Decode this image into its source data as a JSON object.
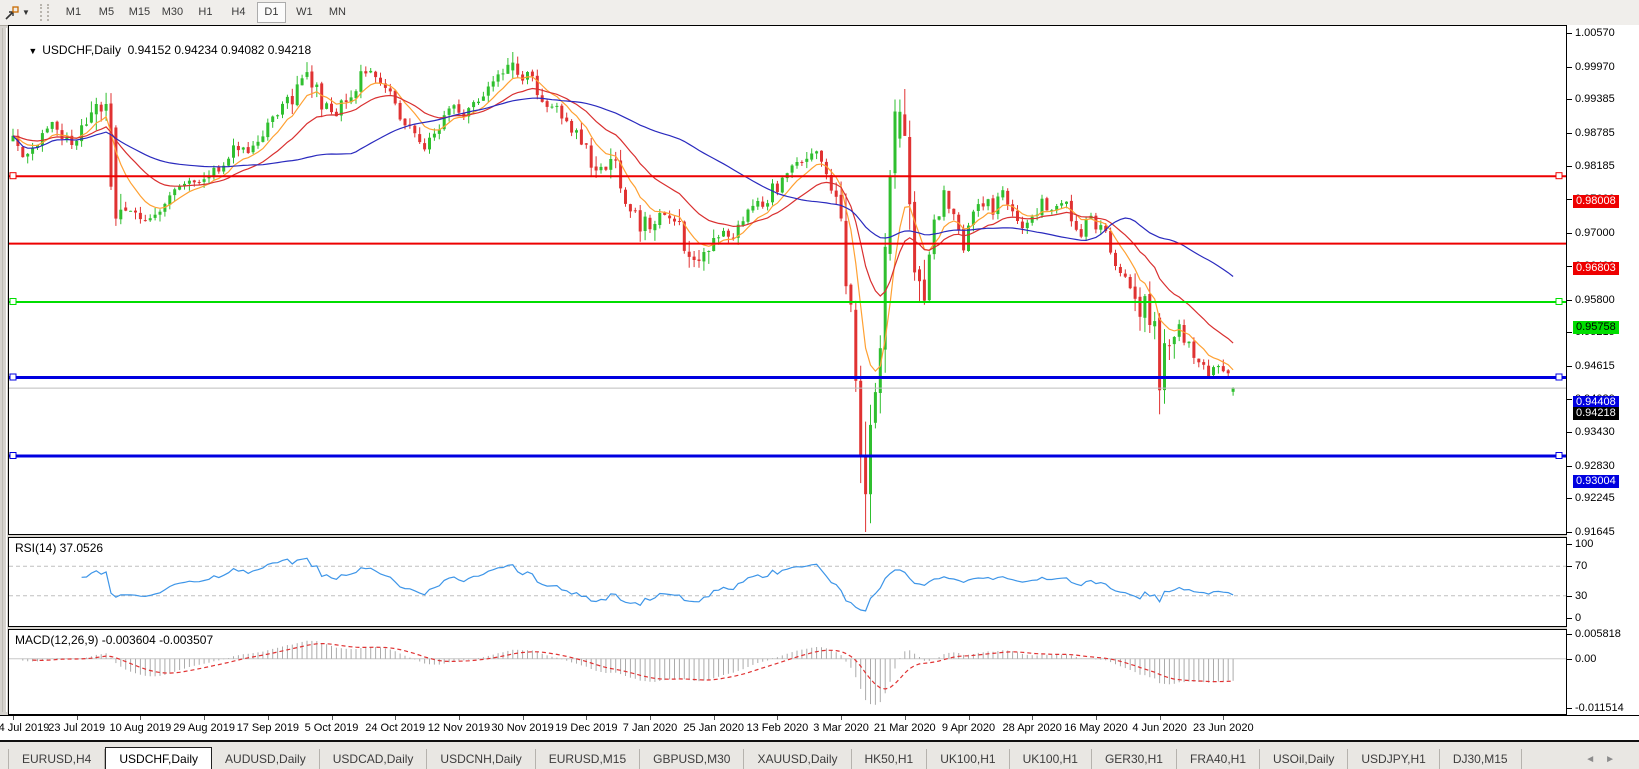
{
  "toolbar": {
    "icon": "chart-cursor-icon",
    "caret": "▼",
    "timeframes": [
      "M1",
      "M5",
      "M15",
      "M30",
      "H1",
      "H4",
      "D1",
      "W1",
      "MN"
    ],
    "active_timeframe": "D1"
  },
  "main_chart": {
    "collapse_arrow": "▼",
    "title": "USDCHF,Daily",
    "ohlc_text": "0.94152 0.94234 0.94082 0.94218"
  },
  "rsi_panel": {
    "label": "RSI(14) 37.0526"
  },
  "macd_panel": {
    "label": "MACD(12,26,9) -0.003604 -0.003507"
  },
  "tabs": {
    "items": [
      "EURUSD,H4",
      "USDCHF,Daily",
      "AUDUSD,Daily",
      "USDCAD,Daily",
      "USDCNH,Daily",
      "EURUSD,M15",
      "GBPUSD,M30",
      "XAUUSD,Daily",
      "HK50,H1",
      "UK100,H1",
      "UK100,H1",
      "GER30,H1",
      "FRA40,H1",
      "USOil,Daily",
      "USDJPY,H1",
      "DJ30,M15"
    ],
    "active_index": 1,
    "scroll_left": "◄",
    "scroll_right": "►"
  },
  "chart_data": {
    "type": "candlestick",
    "symbol": "USDCHF",
    "timeframe": "Daily",
    "last_candle": {
      "open": 0.94152,
      "high": 0.94234,
      "low": 0.94082,
      "close": 0.94218
    },
    "ylim": [
      0.91609,
      1.00695
    ],
    "price_ticks": [
      1.0057,
      0.9997,
      0.99385,
      0.98785,
      0.98185,
      0.976,
      0.97,
      0.964,
      0.958,
      0.95215,
      0.94615,
      0.9403,
      0.9343,
      0.9283,
      0.92245,
      0.91645
    ],
    "hlines": [
      {
        "price": 0.98008,
        "color": "#EE0000",
        "width": 2,
        "badge_bg": "#EE0000",
        "badge_fg": "#FFFFFF",
        "markers": true
      },
      {
        "price": 0.96803,
        "color": "#EE0000",
        "width": 2,
        "badge_bg": "#EE0000",
        "badge_fg": "#FFFFFF",
        "markers": false
      },
      {
        "price": 0.95758,
        "color": "#00DE00",
        "width": 2,
        "badge_bg": "#00DE00",
        "badge_fg": "#000000",
        "markers": true
      },
      {
        "price": 0.94408,
        "color": "#0000E0",
        "width": 3,
        "badge_bg": "#0000E0",
        "badge_fg": "#FFFFFF",
        "markers": true
      },
      {
        "price": 0.93004,
        "color": "#0000E0",
        "width": 3,
        "badge_bg": "#0000E0",
        "badge_fg": "#FFFFFF",
        "markers": true
      }
    ],
    "current_price": {
      "value": 0.94218,
      "line_color": "#BEBEBE",
      "badge_bg": "#000000",
      "badge_fg": "#FFFFFF"
    },
    "x_dates": [
      {
        "label": "4 Jul 2019",
        "day": 0
      },
      {
        "label": "23 Jul 2019",
        "day": 13
      },
      {
        "label": "10 Aug 2019",
        "day": 26
      },
      {
        "label": "29 Aug 2019",
        "day": 39
      },
      {
        "label": "17 Sep 2019",
        "day": 52
      },
      {
        "label": "5 Oct 2019",
        "day": 65
      },
      {
        "label": "24 Oct 2019",
        "day": 78
      },
      {
        "label": "12 Nov 2019",
        "day": 91
      },
      {
        "label": "30 Nov 2019",
        "day": 104
      },
      {
        "label": "19 Dec 2019",
        "day": 117
      },
      {
        "label": "7 Jan 2020",
        "day": 130
      },
      {
        "label": "25 Jan 2020",
        "day": 143
      },
      {
        "label": "13 Feb 2020",
        "day": 156
      },
      {
        "label": "3 Mar 2020",
        "day": 169
      },
      {
        "label": "21 Mar 2020",
        "day": 182
      },
      {
        "label": "9 Apr 2020",
        "day": 195
      },
      {
        "label": "28 Apr 2020",
        "day": 208
      },
      {
        "label": "16 May 2020",
        "day": 221
      },
      {
        "label": "4 Jun 2020",
        "day": 234
      },
      {
        "label": "23 Jun 2020",
        "day": 247
      }
    ],
    "candles": {
      "count": 250,
      "up_color": "#2FBF2F",
      "down_color": "#E03232",
      "anchors": [
        [
          0,
          0.9862
        ],
        [
          3,
          0.9833
        ],
        [
          6,
          0.9872
        ],
        [
          9,
          0.989
        ],
        [
          12,
          0.985
        ],
        [
          14,
          0.988
        ],
        [
          16,
          0.9935
        ],
        [
          18,
          0.9922
        ],
        [
          20,
          0.981
        ],
        [
          21,
          0.9725
        ],
        [
          24,
          0.9745
        ],
        [
          27,
          0.9718
        ],
        [
          30,
          0.973
        ],
        [
          33,
          0.9768
        ],
        [
          36,
          0.98
        ],
        [
          39,
          0.9788
        ],
        [
          42,
          0.9815
        ],
        [
          45,
          0.985
        ],
        [
          48,
          0.9842
        ],
        [
          51,
          0.9875
        ],
        [
          54,
          0.9905
        ],
        [
          57,
          0.9945
        ],
        [
          60,
          0.998
        ],
        [
          63,
          0.9942
        ],
        [
          66,
          0.9915
        ],
        [
          69,
          0.9955
        ],
        [
          72,
          0.9985
        ],
        [
          75,
          0.9958
        ],
        [
          78,
          0.993
        ],
        [
          81,
          0.988
        ],
        [
          84,
          0.985
        ],
        [
          87,
          0.9885
        ],
        [
          90,
          0.993
        ],
        [
          93,
          0.9915
        ],
        [
          96,
          0.9955
        ],
        [
          99,
          0.9985
        ],
        [
          102,
          1.0
        ],
        [
          105,
          0.9978
        ],
        [
          108,
          0.9945
        ],
        [
          111,
          0.9922
        ],
        [
          114,
          0.9888
        ],
        [
          117,
          0.984
        ],
        [
          120,
          0.9815
        ],
        [
          122,
          0.9845
        ],
        [
          124,
          0.98
        ],
        [
          126,
          0.9742
        ],
        [
          128,
          0.97
        ],
        [
          130,
          0.9722
        ],
        [
          133,
          0.9735
        ],
        [
          136,
          0.9705
        ],
        [
          139,
          0.9628
        ],
        [
          141,
          0.9645
        ],
        [
          143,
          0.9702
        ],
        [
          146,
          0.9685
        ],
        [
          149,
          0.9718
        ],
        [
          152,
          0.9748
        ],
        [
          155,
          0.9775
        ],
        [
          158,
          0.9802
        ],
        [
          161,
          0.9838
        ],
        [
          164,
          0.985
        ],
        [
          166,
          0.9792
        ],
        [
          168,
          0.9748
        ],
        [
          170,
          0.9655
        ],
        [
          171,
          0.956
        ],
        [
          172,
          0.9435
        ],
        [
          173,
          0.93
        ],
        [
          174,
          0.923
        ],
        [
          175,
          0.9355
        ],
        [
          176,
          0.944
        ],
        [
          177,
          0.953
        ],
        [
          178,
          0.966
        ],
        [
          179,
          0.98
        ],
        [
          180,
          0.9868
        ],
        [
          181,
          0.9915
        ],
        [
          182,
          0.9855
        ],
        [
          183,
          0.9748
        ],
        [
          184,
          0.968
        ],
        [
          185,
          0.9628
        ],
        [
          186,
          0.9592
        ],
        [
          187,
          0.9655
        ],
        [
          188,
          0.9712
        ],
        [
          190,
          0.9762
        ],
        [
          192,
          0.9728
        ],
        [
          194,
          0.9682
        ],
        [
          196,
          0.9726
        ],
        [
          198,
          0.976
        ],
        [
          200,
          0.9744
        ],
        [
          202,
          0.978
        ],
        [
          204,
          0.9748
        ],
        [
          206,
          0.9702
        ],
        [
          208,
          0.9722
        ],
        [
          210,
          0.9756
        ],
        [
          212,
          0.974
        ],
        [
          214,
          0.9762
        ],
        [
          216,
          0.973
        ],
        [
          218,
          0.97
        ],
        [
          220,
          0.9726
        ],
        [
          222,
          0.9712
        ],
        [
          224,
          0.9668
        ],
        [
          226,
          0.9632
        ],
        [
          228,
          0.9612
        ],
        [
          230,
          0.9578
        ],
        [
          232,
          0.956
        ],
        [
          233,
          0.9545
        ],
        [
          234,
          0.942
        ],
        [
          235,
          0.9478
        ],
        [
          236,
          0.9498
        ],
        [
          238,
          0.9525
        ],
        [
          240,
          0.9502
        ],
        [
          242,
          0.9468
        ],
        [
          244,
          0.944
        ],
        [
          246,
          0.9474
        ],
        [
          248,
          0.9435
        ],
        [
          249,
          0.94218
        ]
      ],
      "volatility_segments": [
        [
          16,
          23,
          0.0032
        ],
        [
          57,
          63,
          0.0022
        ],
        [
          117,
          131,
          0.0022
        ],
        [
          136,
          143,
          0.0024
        ],
        [
          168,
          186,
          0.0055
        ],
        [
          229,
          237,
          0.003
        ]
      ],
      "default_volatility": 0.0014,
      "forced": {
        "19": [
          0.9918,
          0.995,
          0.99,
          0.993
        ],
        "21": [
          0.9888,
          0.9892,
          0.9712,
          0.9725
        ],
        "102": [
          0.999,
          1.0023,
          0.9976,
          1.0004
        ],
        "172": [
          0.9562,
          0.9578,
          0.9415,
          0.9435
        ],
        "173": [
          0.9435,
          0.9462,
          0.9252,
          0.93
        ],
        "174": [
          0.93,
          0.9362,
          0.91645,
          0.9232
        ],
        "175": [
          0.9232,
          0.9392,
          0.918,
          0.9356
        ],
        "179": [
          0.9662,
          0.9812,
          0.965,
          0.98
        ],
        "181": [
          0.9868,
          0.9938,
          0.9852,
          0.9916
        ],
        "234": [
          0.9548,
          0.9556,
          0.9375,
          0.9418
        ],
        "249": [
          0.94152,
          0.94234,
          0.94082,
          0.94218
        ]
      }
    },
    "moving_averages": [
      {
        "name": "ma-fast",
        "type": "ema",
        "period": 8,
        "color": "#FFA133"
      },
      {
        "name": "ma-mid",
        "type": "ema",
        "period": 21,
        "color": "#D93030"
      },
      {
        "name": "ma-slow",
        "type": "sma",
        "period": 50,
        "color": "#2A2ABE"
      }
    ],
    "rsi": {
      "period": 14,
      "last_value": 37.0526,
      "color": "#3D95E8",
      "levels": [
        70,
        30
      ],
      "axis_labels": [
        100,
        70,
        30,
        0
      ],
      "ylim": [
        0,
        100
      ],
      "level_line_color": "#BFBFBF"
    },
    "macd": {
      "fast": 12,
      "slow": 26,
      "signal": 9,
      "last_main": -0.003604,
      "last_signal": -0.003507,
      "axis_labels": [
        "0.005818",
        "0.00",
        "-0.011514"
      ],
      "ylim": [
        -0.011514,
        0.005818
      ],
      "histogram_color": "#ABABAB",
      "signal_color": "#E03232",
      "zero_line_color": "#C8C8C8"
    }
  }
}
